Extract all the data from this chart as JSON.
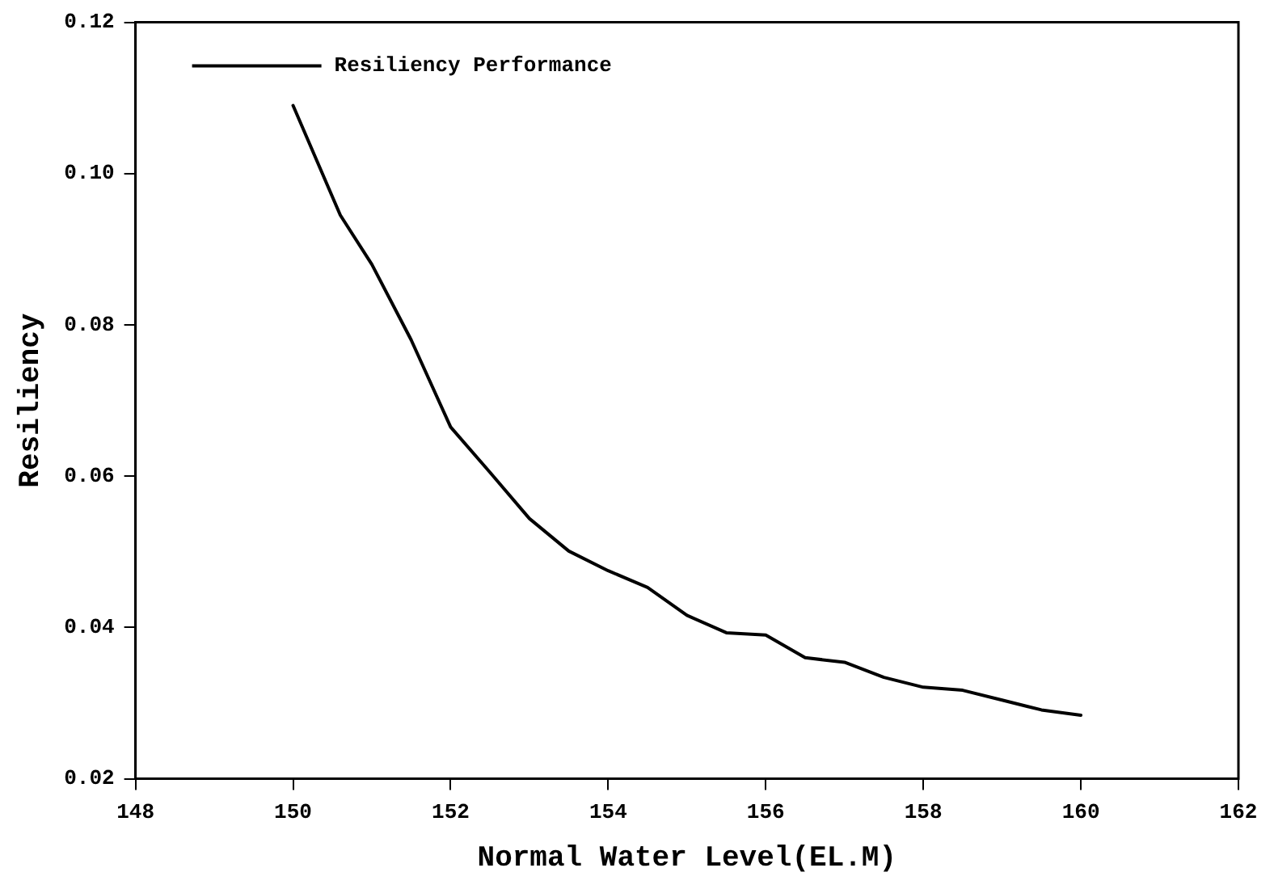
{
  "chart_data": {
    "type": "line",
    "xlabel": "Normal Water Level(EL.M)",
    "ylabel": "Resiliency",
    "x": [
      150,
      150.6,
      151,
      151.5,
      152,
      152.5,
      153,
      153.5,
      154,
      154.5,
      155,
      155.5,
      156,
      156.5,
      157,
      157.5,
      158,
      158.5,
      159,
      159.5,
      160
    ],
    "series": [
      {
        "name": "Resiliency Performance",
        "color": "#000000",
        "values": [
          0.109,
          0.0945,
          0.088,
          0.078,
          0.0665,
          0.0605,
          0.0544,
          0.0501,
          0.0475,
          0.0453,
          0.0416,
          0.0393,
          0.039,
          0.036,
          0.0354,
          0.0334,
          0.0321,
          0.0317,
          0.0304,
          0.0291,
          0.0284
        ]
      }
    ],
    "xlim": [
      148,
      162
    ],
    "xticks": [
      148,
      150,
      152,
      154,
      156,
      158,
      160,
      162
    ],
    "ylim": [
      0.02,
      0.12
    ],
    "yticks": [
      {
        "value": 0.02,
        "label": "0.02"
      },
      {
        "value": 0.04,
        "label": "0.04"
      },
      {
        "value": 0.06,
        "label": "0.06"
      },
      {
        "value": 0.08,
        "label": "0.08"
      },
      {
        "value": 0.1,
        "label": "0.10"
      },
      {
        "value": 0.12,
        "label": "0.12"
      }
    ],
    "grid": false,
    "legend": "top left",
    "marker": "none",
    "line_style": "solid"
  }
}
